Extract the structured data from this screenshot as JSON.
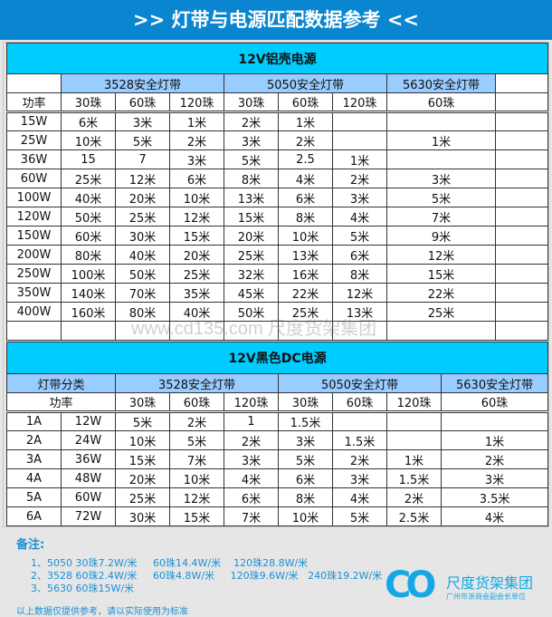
{
  "header": {
    "title": ">> 灯带与电源匹配数据参考 <<"
  },
  "colors": {
    "header": "#0a86d0",
    "section_title": "#00ccff",
    "group_header": "#99ccff",
    "note_text": "#1a8fd6"
  },
  "table1": {
    "title": "12V铝壳电源",
    "groups": [
      "3528安全灯带",
      "5050安全灯带",
      "5630安全灯带"
    ],
    "power_label": "功率",
    "beads": [
      "30珠",
      "60珠",
      "120珠",
      "30珠",
      "60珠",
      "120珠",
      "60珠"
    ],
    "rows": [
      [
        "15W",
        "6米",
        "3米",
        "1米",
        "2米",
        "1米",
        "",
        ""
      ],
      [
        "25W",
        "10米",
        "5米",
        "2米",
        "3米",
        "2米",
        "",
        "1米"
      ],
      [
        "36W",
        "15",
        "7",
        "3米",
        "5米",
        "2.5",
        "1米",
        ""
      ],
      [
        "60W",
        "25米",
        "12米",
        "6米",
        "8米",
        "4米",
        "2米",
        "3米"
      ],
      [
        "100W",
        "40米",
        "20米",
        "10米",
        "13米",
        "6米",
        "3米",
        "5米"
      ],
      [
        "120W",
        "50米",
        "25米",
        "12米",
        "15米",
        "8米",
        "4米",
        "7米"
      ],
      [
        "150W",
        "60米",
        "30米",
        "15米",
        "20米",
        "10米",
        "5米",
        "9米"
      ],
      [
        "200W",
        "80米",
        "40米",
        "20米",
        "25米",
        "13米",
        "6米",
        "12米"
      ],
      [
        "250W",
        "100米",
        "50米",
        "25米",
        "32米",
        "16米",
        "8米",
        "15米"
      ],
      [
        "350W",
        "140米",
        "70米",
        "35米",
        "45米",
        "22米",
        "12米",
        "22米"
      ],
      [
        "400W",
        "160米",
        "80米",
        "40米",
        "50米",
        "25米",
        "13米",
        "25米"
      ]
    ]
  },
  "watermark": "www.cd135.com  尺度货架集团",
  "table2": {
    "title": "12V黑色DC电源",
    "category_label": "灯带分类",
    "groups": [
      "3528安全灯带",
      "5050安全灯带",
      "5630安全灯带"
    ],
    "power_label": "功率",
    "beads": [
      "30珠",
      "60珠",
      "120珠",
      "30珠",
      "60珠",
      "120珠",
      "60珠"
    ],
    "rows": [
      [
        "1A",
        "12W",
        "5米",
        "2米",
        "1",
        "1.5米",
        "",
        "",
        ""
      ],
      [
        "2A",
        "24W",
        "10米",
        "5米",
        "2米",
        "3米",
        "1.5米",
        "",
        "1米"
      ],
      [
        "3A",
        "36W",
        "15米",
        "7米",
        "3米",
        "5米",
        "2米",
        "1米",
        "2米"
      ],
      [
        "4A",
        "48W",
        "20米",
        "10米",
        "4米",
        "6米",
        "3米",
        "1.5米",
        "3米"
      ],
      [
        "5A",
        "60W",
        "25米",
        "12米",
        "6米",
        "8米",
        "4米",
        "2米",
        "3.5米"
      ],
      [
        "6A",
        "72W",
        "30米",
        "15米",
        "7米",
        "10米",
        "5米",
        "2.5米",
        "4米"
      ]
    ]
  },
  "notes": {
    "heading": "备注:",
    "lines": [
      "1、5050 30珠7.2W/米     60珠14.4W/米    120珠28.8W/米",
      "2、3528 60珠2.4W/米     60珠4.8W/米     120珠9.6W/米   240珠19.2W/米",
      "3、5630 60珠15W/米"
    ],
    "disclaimer": "以上数据仅提供参考，请以实际使用为标准"
  },
  "logo": {
    "mark": "CO",
    "name": "尺度货架集团",
    "subtitle": "广州市浙商会副会长单位"
  }
}
